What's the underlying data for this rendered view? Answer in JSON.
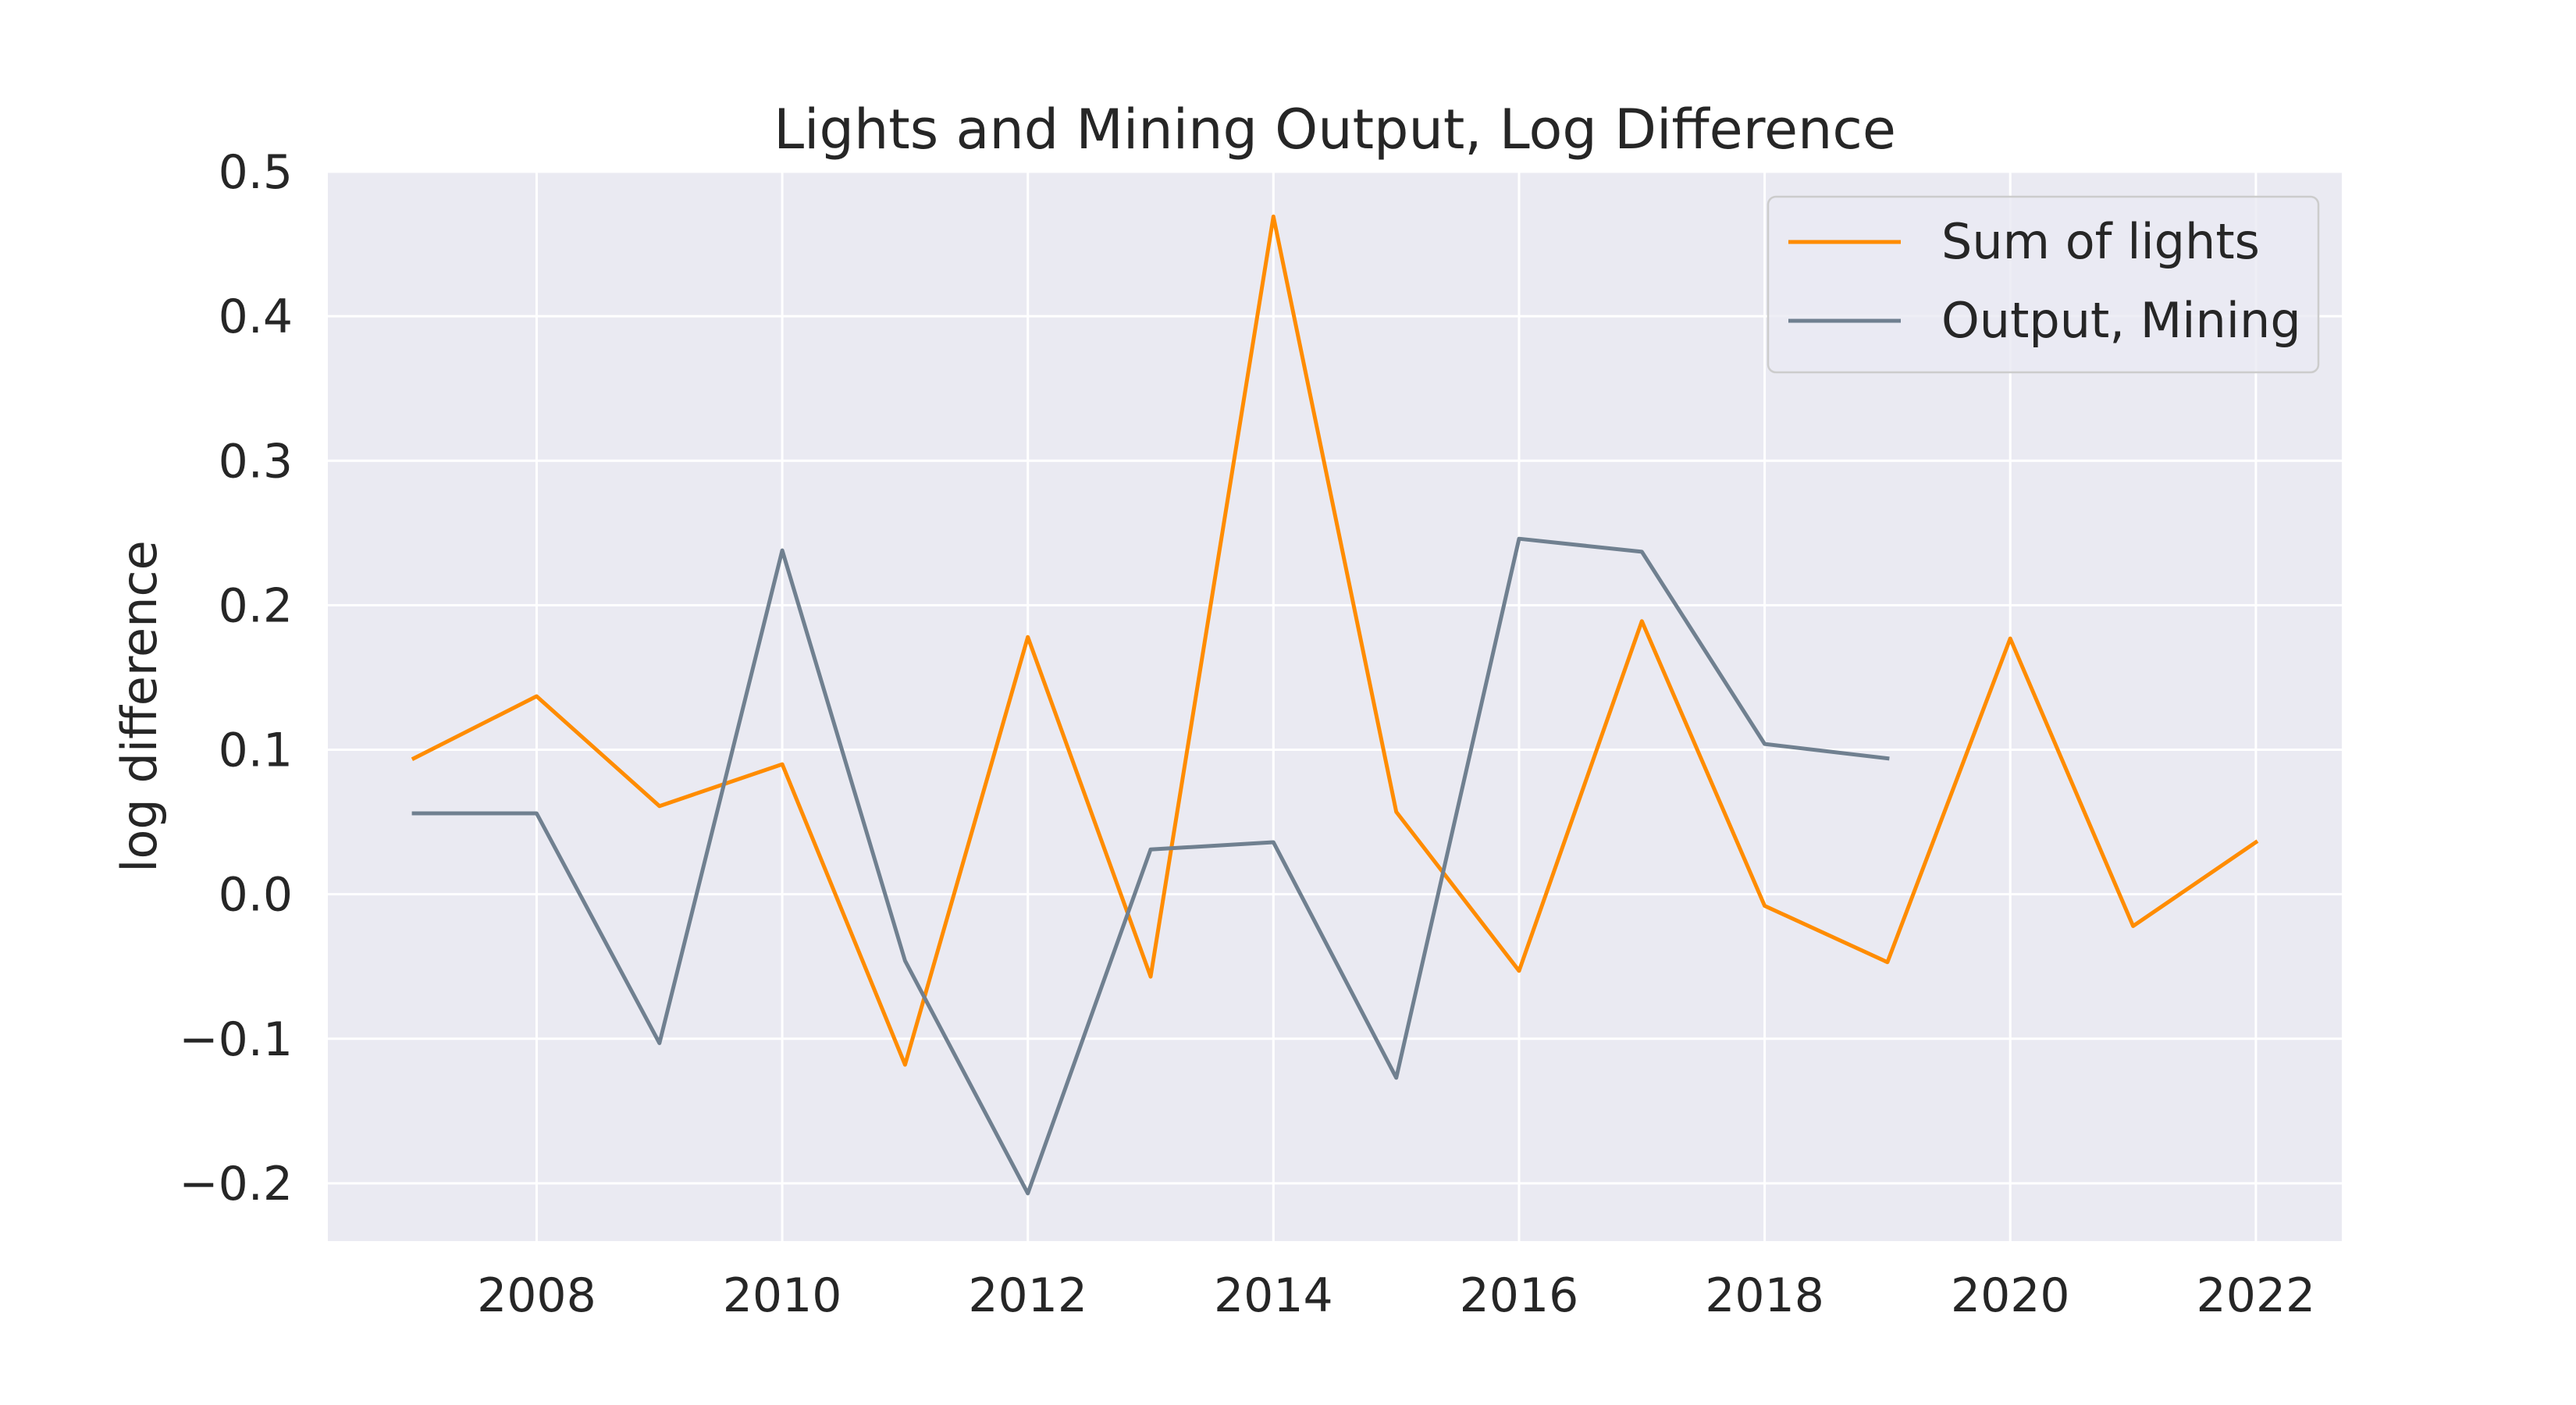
{
  "chart_data": {
    "type": "line",
    "title": "Lights and Mining Output, Log Difference",
    "xlabel": "",
    "ylabel": "log difference",
    "xlim": [
      2006.3,
      2022.7
    ],
    "ylim": [
      -0.24,
      0.5
    ],
    "x_ticks": [
      2008,
      2010,
      2012,
      2014,
      2016,
      2018,
      2020,
      2022
    ],
    "x_tick_labels": [
      "2008",
      "2010",
      "2012",
      "2014",
      "2016",
      "2018",
      "2020",
      "2022"
    ],
    "y_ticks": [
      -0.2,
      -0.1,
      0.0,
      0.1,
      0.2,
      0.3,
      0.4,
      0.5
    ],
    "y_tick_labels": [
      "−0.2",
      "−0.1",
      "0.0",
      "0.1",
      "0.2",
      "0.3",
      "0.4",
      "0.5"
    ],
    "grid": true,
    "legend_position": "top-right",
    "series": [
      {
        "name": "Sum of lights",
        "color": "#ff8c00",
        "x": [
          2007,
          2008,
          2009,
          2010,
          2011,
          2012,
          2013,
          2014,
          2015,
          2016,
          2017,
          2018,
          2019,
          2020,
          2021,
          2022
        ],
        "values": [
          0.094,
          0.137,
          0.061,
          0.09,
          -0.118,
          0.178,
          -0.057,
          0.469,
          0.057,
          -0.053,
          0.189,
          -0.008,
          -0.047,
          0.177,
          -0.022,
          0.036
        ]
      },
      {
        "name": "Output, Mining",
        "color": "#708090",
        "x": [
          2007,
          2008,
          2009,
          2010,
          2011,
          2012,
          2013,
          2014,
          2015,
          2016,
          2017,
          2018,
          2019
        ],
        "values": [
          0.056,
          0.056,
          -0.103,
          0.238,
          -0.046,
          -0.207,
          0.031,
          0.036,
          -0.127,
          0.246,
          0.237,
          0.104,
          0.094
        ]
      }
    ]
  }
}
